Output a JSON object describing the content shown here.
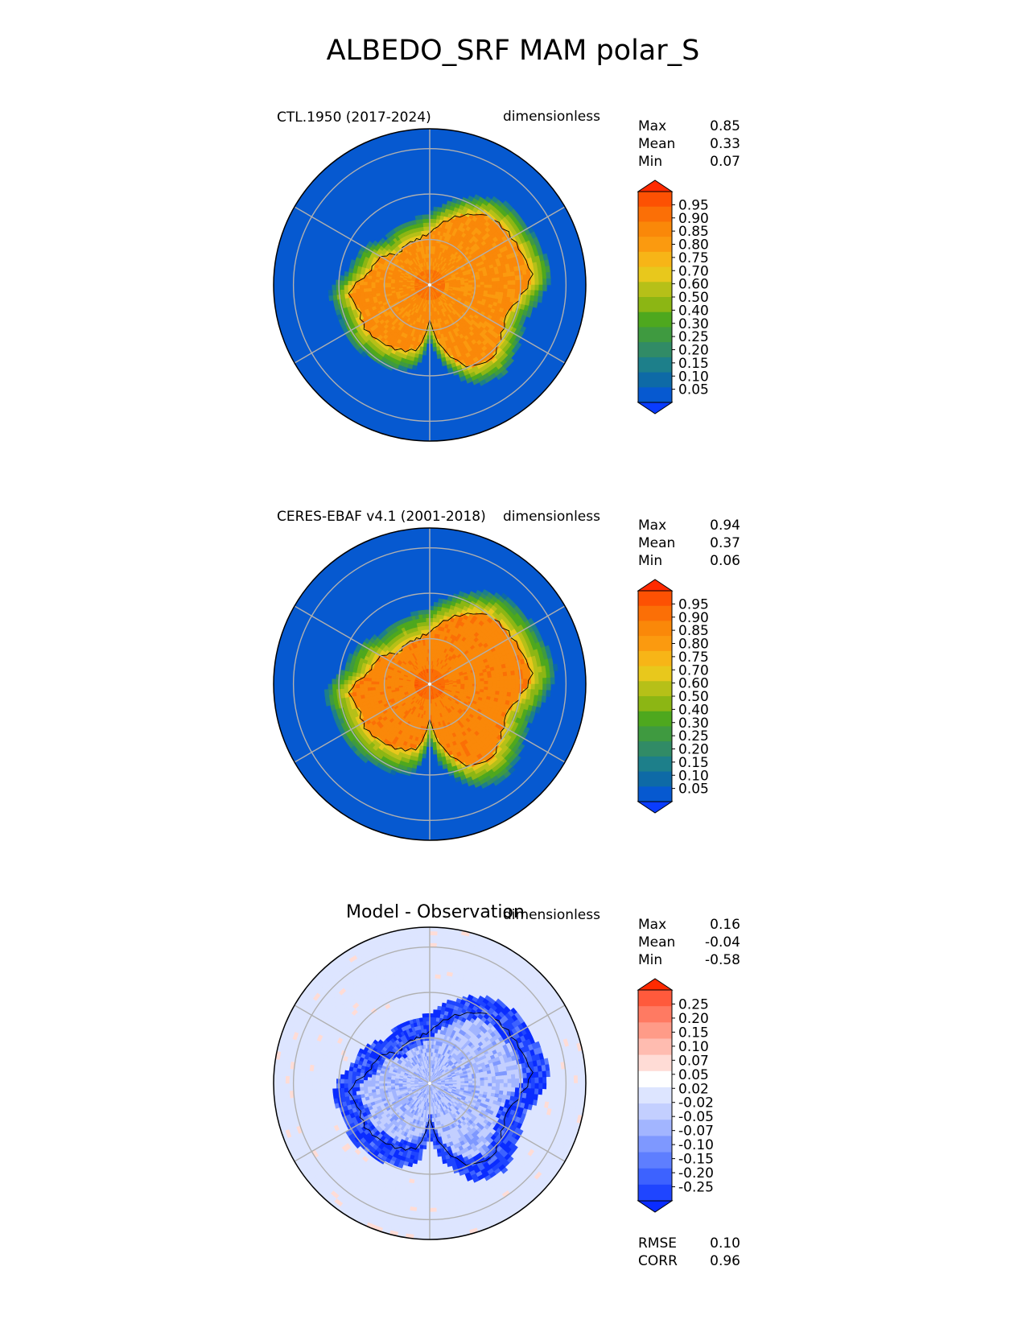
{
  "title": "ALBEDO_SRF MAM polar_S",
  "panels": [
    {
      "left_label": "CTL.1950 (2017-2024)",
      "right_label": "dimensionless",
      "stats": [
        {
          "label": "Max",
          "value": "0.85"
        },
        {
          "label": "Mean",
          "value": "0.33"
        },
        {
          "label": "Min",
          "value": "0.07"
        }
      ],
      "colorbar_ticks": [
        "0.95",
        "0.90",
        "0.85",
        "0.80",
        "0.75",
        "0.70",
        "0.60",
        "0.50",
        "0.40",
        "0.30",
        "0.25",
        "0.20",
        "0.15",
        "0.10",
        "0.05"
      ]
    },
    {
      "left_label": "CERES-EBAF v4.1 (2001-2018)",
      "right_label": "dimensionless",
      "stats": [
        {
          "label": "Max",
          "value": "0.94"
        },
        {
          "label": "Mean",
          "value": "0.37"
        },
        {
          "label": "Min",
          "value": "0.06"
        }
      ],
      "colorbar_ticks": [
        "0.95",
        "0.90",
        "0.85",
        "0.80",
        "0.75",
        "0.70",
        "0.60",
        "0.50",
        "0.40",
        "0.30",
        "0.25",
        "0.20",
        "0.15",
        "0.10",
        "0.05"
      ]
    },
    {
      "center_label": "Model - Observation",
      "right_label": "dimensionless",
      "stats": [
        {
          "label": "Max",
          "value": "0.16"
        },
        {
          "label": "Mean",
          "value": "-0.04"
        },
        {
          "label": "Min",
          "value": "-0.58"
        }
      ],
      "colorbar_ticks": [
        "0.25",
        "0.20",
        "0.15",
        "0.10",
        "0.07",
        "0.05",
        "0.02",
        "-0.02",
        "-0.05",
        "-0.07",
        "-0.10",
        "-0.15",
        "-0.20",
        "-0.25"
      ],
      "metrics": [
        {
          "label": "RMSE",
          "value": "0.10"
        },
        {
          "label": "CORR",
          "value": "0.96"
        }
      ]
    }
  ],
  "chart_data": [
    {
      "type": "heatmap",
      "title": "CTL.1950 (2017-2024)",
      "units": "dimensionless",
      "stats": {
        "max": 0.85,
        "mean": 0.33,
        "min": 0.07
      },
      "levels": [
        0.05,
        0.1,
        0.15,
        0.2,
        0.25,
        0.3,
        0.4,
        0.5,
        0.6,
        0.7,
        0.75,
        0.8,
        0.85,
        0.9,
        0.95
      ],
      "colors": [
        "#0a3cff",
        "#0659d0",
        "#0e6aa6",
        "#1d7f8a",
        "#318b66",
        "#3f9a40",
        "#4ea81e",
        "#8cb614",
        "#b6c018",
        "#e8c81c",
        "#f7b517",
        "#fb9a0f",
        "#fa8809",
        "#fb6f06",
        "#fd5103",
        "#ff2a00"
      ],
      "grid": true
    },
    {
      "type": "heatmap",
      "title": "CERES-EBAF v4.1 (2001-2018)",
      "units": "dimensionless",
      "stats": {
        "max": 0.94,
        "mean": 0.37,
        "min": 0.06
      },
      "levels": [
        0.05,
        0.1,
        0.15,
        0.2,
        0.25,
        0.3,
        0.4,
        0.5,
        0.6,
        0.7,
        0.75,
        0.8,
        0.85,
        0.9,
        0.95
      ],
      "colors": [
        "#0a3cff",
        "#0659d0",
        "#0e6aa6",
        "#1d7f8a",
        "#318b66",
        "#3f9a40",
        "#4ea81e",
        "#8cb614",
        "#b6c018",
        "#e8c81c",
        "#f7b517",
        "#fb9a0f",
        "#fa8809",
        "#fb6f06",
        "#fd5103",
        "#ff2a00"
      ],
      "grid": true
    },
    {
      "type": "heatmap",
      "title": "Model - Observation",
      "units": "dimensionless",
      "stats": {
        "max": 0.16,
        "mean": -0.04,
        "min": -0.58,
        "rmse": 0.1,
        "corr": 0.96
      },
      "levels": [
        -0.25,
        -0.2,
        -0.15,
        -0.1,
        -0.07,
        -0.05,
        -0.02,
        0.02,
        0.05,
        0.07,
        0.1,
        0.15,
        0.2,
        0.25
      ],
      "colors": [
        "#0a2cff",
        "#1f45ff",
        "#3d62ff",
        "#5e7eff",
        "#7e98ff",
        "#a2b5ff",
        "#c3cfff",
        "#dde5ff",
        "#ffffff",
        "#ffdcd6",
        "#ffbcb0",
        "#ff9b88",
        "#ff7a62",
        "#ff5a3c",
        "#ff2a00"
      ],
      "grid": true
    }
  ]
}
